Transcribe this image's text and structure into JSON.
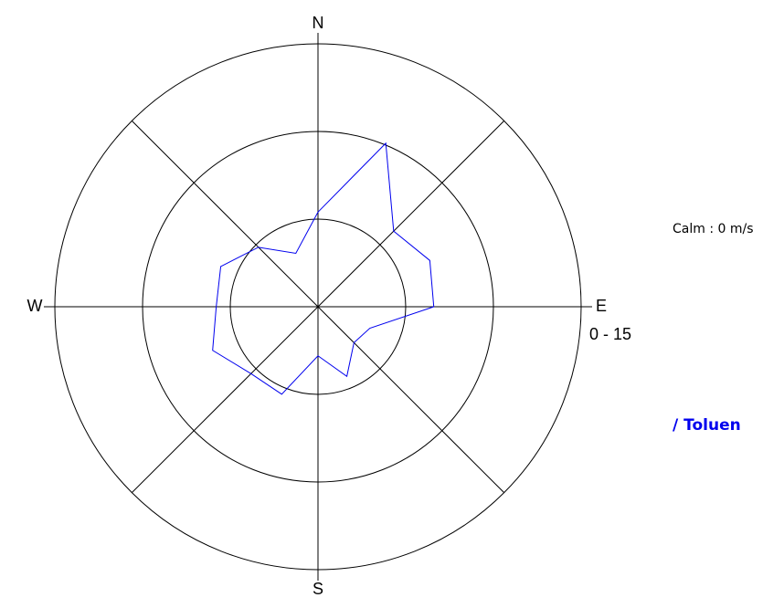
{
  "chart_data": {
    "type": "radar",
    "categories": [
      "N",
      null,
      null,
      null,
      "E",
      null,
      null,
      null,
      "S",
      null,
      null,
      null,
      "W",
      null,
      null,
      null
    ],
    "series": [
      {
        "name": "/ Toluen",
        "color": "#0000ee",
        "values": [
          5.4,
          10.1,
          6.1,
          6.9,
          6.6,
          3.2,
          2.9,
          4.3,
          2.8,
          5.4,
          5.4,
          6.5,
          5.8,
          6.0,
          4.8,
          3.3
        ]
      }
    ],
    "rlim": [
      0,
      15
    ],
    "rticks": [
      5,
      10,
      15
    ],
    "grid": true,
    "range_label": "0 - 15",
    "calm_label": "Calm : 0 m/s"
  }
}
